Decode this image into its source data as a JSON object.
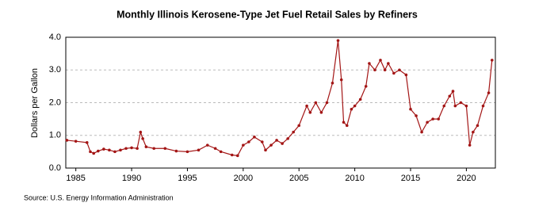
{
  "chart_data": {
    "type": "line",
    "title": "Monthly Illinois Kerosene-Type Jet Fuel Retail Sales by Refiners",
    "y_label": "Dollars per Gallon",
    "source": "Source: U.S. Energy Information Administration",
    "x": [
      1984.2,
      1985,
      1986,
      1986.3,
      1986.6,
      1987,
      1987.5,
      1988,
      1988.5,
      1989,
      1989.5,
      1990,
      1990.5,
      1990.8,
      1991,
      1991.3,
      1992,
      1993,
      1994,
      1995,
      1996,
      1996.8,
      1997.5,
      1998,
      1999,
      1999.5,
      2000,
      2000.5,
      2001,
      2001.7,
      2002,
      2002.5,
      2003,
      2003.5,
      2004,
      2004.5,
      2005,
      2005.7,
      2006,
      2006.5,
      2007,
      2007.5,
      2008,
      2008.5,
      2008.8,
      2009,
      2009.3,
      2009.7,
      2010,
      2010.5,
      2011,
      2011.3,
      2011.8,
      2012.3,
      2012.7,
      2013,
      2013.5,
      2014,
      2014.6,
      2015,
      2015.5,
      2016,
      2016.5,
      2017,
      2017.5,
      2018,
      2018.5,
      2018.8,
      2019,
      2019.5,
      2020,
      2020.3,
      2020.6,
      2021,
      2021.5,
      2022,
      2022.3
    ],
    "series": [
      {
        "name": "Illinois Kerosene-Type Jet Fuel",
        "color": "#a31515",
        "values": [
          0.85,
          0.82,
          0.78,
          0.5,
          0.45,
          0.52,
          0.58,
          0.55,
          0.5,
          0.55,
          0.6,
          0.62,
          0.6,
          1.1,
          0.9,
          0.65,
          0.6,
          0.6,
          0.52,
          0.5,
          0.55,
          0.7,
          0.6,
          0.5,
          0.4,
          0.38,
          0.7,
          0.8,
          0.95,
          0.8,
          0.55,
          0.7,
          0.85,
          0.75,
          0.9,
          1.1,
          1.3,
          1.9,
          1.7,
          2.0,
          1.7,
          2.0,
          2.6,
          3.9,
          2.7,
          1.4,
          1.3,
          1.8,
          1.9,
          2.1,
          2.5,
          3.2,
          3.0,
          3.3,
          3.0,
          3.2,
          2.9,
          3.0,
          2.85,
          1.8,
          1.6,
          1.1,
          1.4,
          1.5,
          1.5,
          1.9,
          2.2,
          2.35,
          1.9,
          2.0,
          1.9,
          0.7,
          1.1,
          1.3,
          1.9,
          2.3,
          3.3
        ]
      }
    ],
    "xlim": [
      1984.1,
      2022.6
    ],
    "xticks": [
      1985,
      1990,
      1995,
      2000,
      2005,
      2010,
      2015,
      2020
    ],
    "ylim": [
      0,
      4
    ],
    "yticks": [
      {
        "value": 0,
        "label": "0.0"
      },
      {
        "value": 1,
        "label": "1.0"
      },
      {
        "value": 2,
        "label": "2.0"
      },
      {
        "value": 3,
        "label": "3.0"
      },
      {
        "value": 4,
        "label": "4.0"
      }
    ],
    "grid": true
  }
}
